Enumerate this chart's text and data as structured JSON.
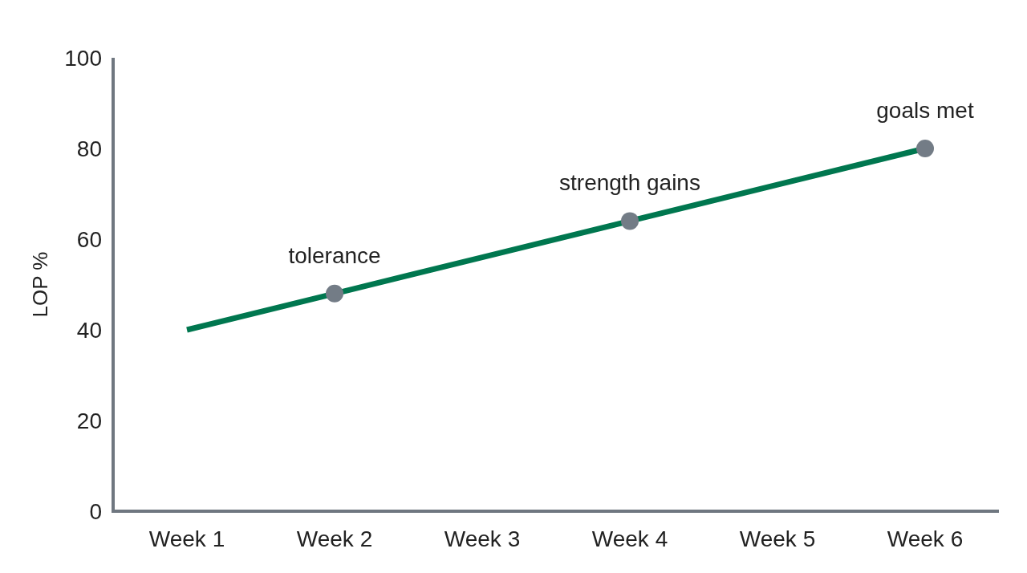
{
  "chart_data": {
    "type": "line",
    "ylabel": "LOP %",
    "categories": [
      "Week 1",
      "Week 2",
      "Week 3",
      "Week 4",
      "Week 5",
      "Week 6"
    ],
    "series": [
      {
        "color": "#00774f",
        "marker": "none",
        "values": [
          40,
          48,
          56,
          64,
          72,
          80
        ]
      },
      {
        "type": "scatter",
        "marker": "circle",
        "color": "#737c86",
        "x": [
          "Week 2",
          "Week 4",
          "Week 6"
        ],
        "values": [
          48,
          64,
          80
        ]
      }
    ],
    "ylim": [
      0,
      100
    ],
    "yticks": [
      0,
      20,
      40,
      60,
      80,
      100
    ],
    "line_style": "solid",
    "annotations": [
      {
        "text": "tolerance",
        "x": "Week 2",
        "y": 48
      },
      {
        "text": "strength gains",
        "x": "Week 4",
        "y": 64
      },
      {
        "text": "goals met",
        "x": "Week 6",
        "y": 80
      }
    ]
  }
}
